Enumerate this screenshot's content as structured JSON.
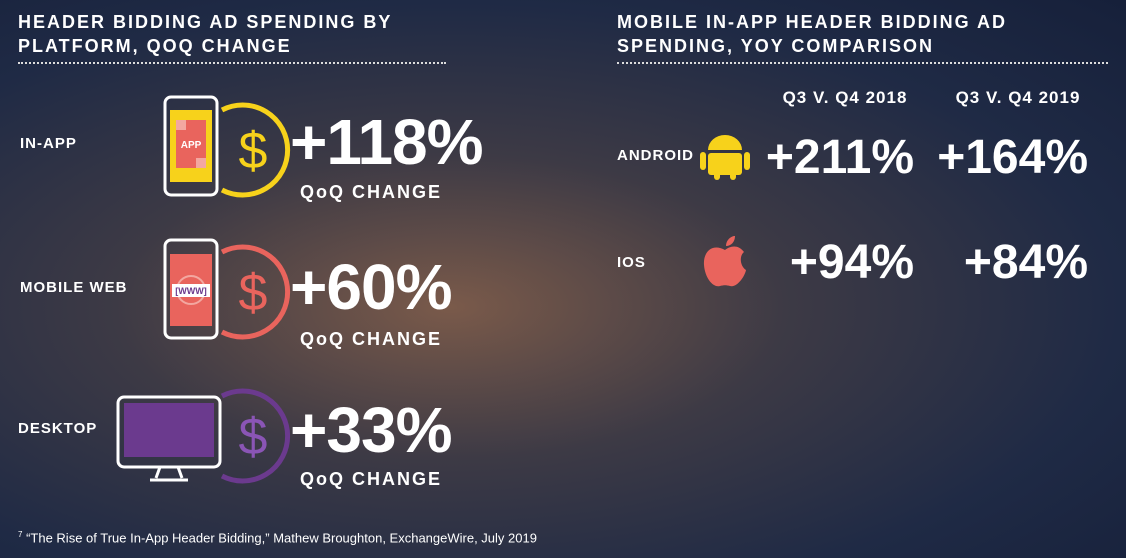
{
  "left": {
    "title": "HEADER BIDDING AD SPENDING BY PLATFORM, QOQ CHANGE",
    "rows": [
      {
        "label": "IN-APP",
        "icon_text": "APP",
        "value": "+118%",
        "caption": "QoQ CHANGE"
      },
      {
        "label": "MOBILE WEB",
        "icon_text": "[WWW]",
        "value": "+60%",
        "caption": "QoQ CHANGE"
      },
      {
        "label": "DESKTOP",
        "value": "+33%",
        "caption": "QoQ CHANGE"
      }
    ]
  },
  "right": {
    "title": "MOBILE IN-APP HEADER BIDDING AD SPENDING, YOY COMPARISON",
    "columns": [
      "Q3 V. Q4 2018",
      "Q3 V. Q4 2019"
    ],
    "rows": [
      {
        "label": "ANDROID",
        "values": [
          "+211%",
          "+164%"
        ]
      },
      {
        "label": "IOS",
        "values": [
          "+94%",
          "+84%"
        ]
      }
    ]
  },
  "footnote": {
    "marker": "7",
    "text": "“The Rise of True In-App Header Bidding,” Mathew Broughton, ExchangeWire, July 2019"
  }
}
